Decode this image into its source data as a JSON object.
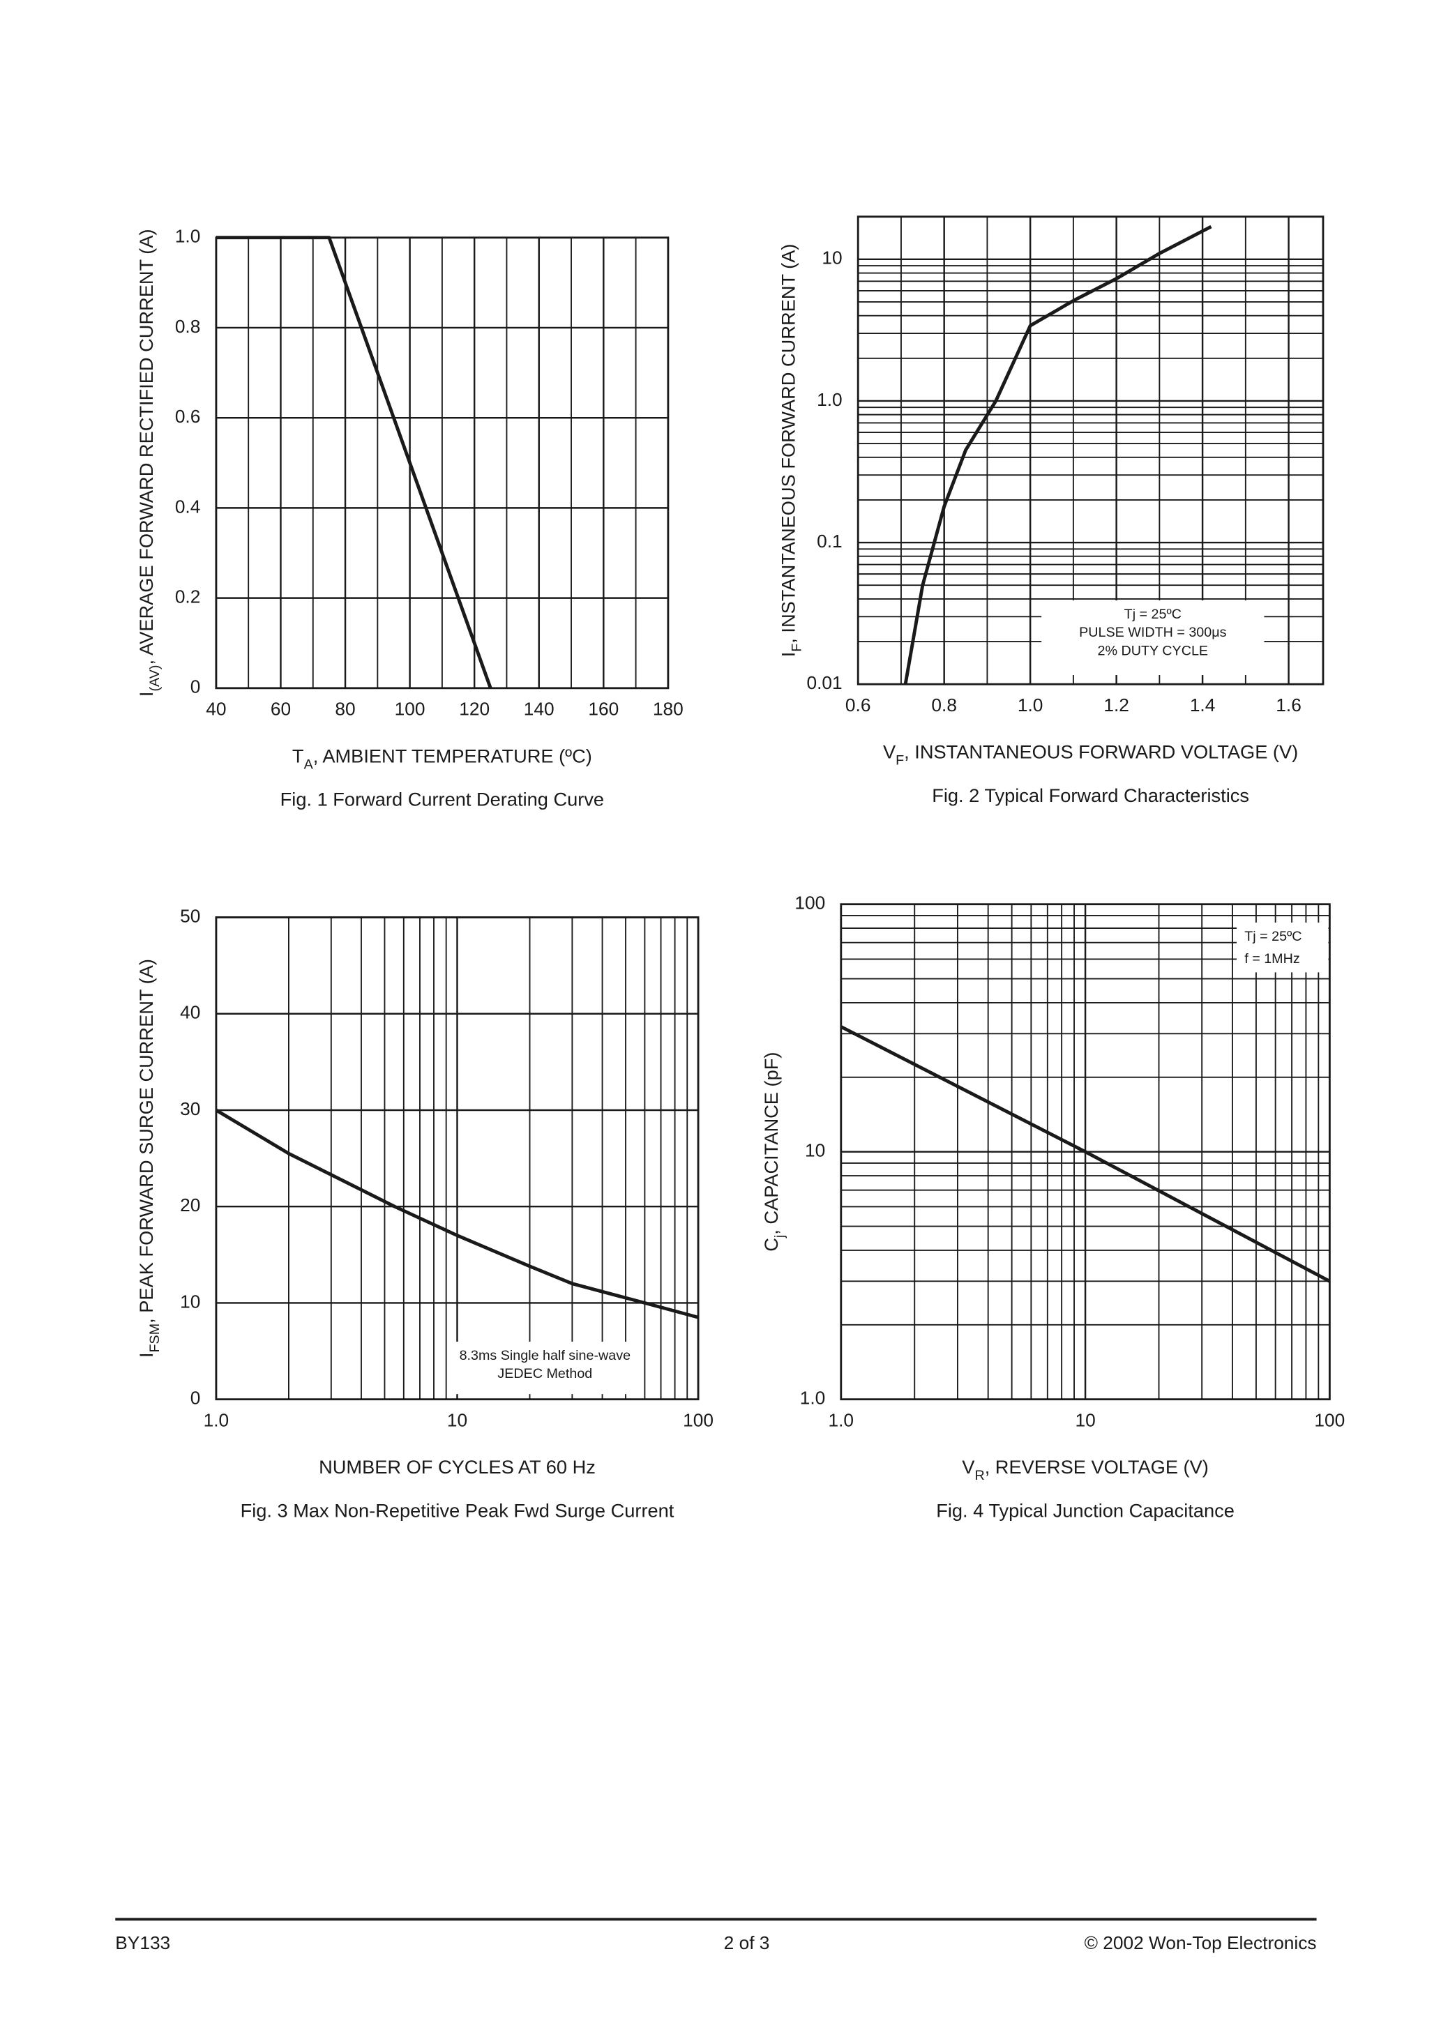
{
  "chart_data": [
    {
      "type": "line",
      "title": "Fig. 1 Forward Current Derating Curve",
      "xlabel": [
        "T",
        "A",
        ", AMBIENT TEMPERATURE (ºC)"
      ],
      "ylabel": [
        "I",
        "(AV)",
        ", AVERAGE FORWARD RECTIFIED CURRENT (A)"
      ],
      "x": [
        40,
        75,
        125
      ],
      "values": [
        1,
        1,
        0
      ],
      "color": "#1a1a1a",
      "xlim": [
        40,
        180
      ],
      "xticks": [
        40,
        60,
        80,
        100,
        120,
        140,
        160,
        180
      ],
      "ylim": [
        0,
        1
      ],
      "yticks": [
        0,
        0.2,
        0.4,
        0.6,
        0.8,
        {
          "value": 1,
          "label": "1.0"
        }
      ],
      "grid": true,
      "minor_grid": "x"
    },
    {
      "type": "line",
      "title": "Fig. 2 Typical Forward Characteristics",
      "xlabel": [
        "V",
        "F",
        ", INSTANTANEOUS FORWARD VOLTAGE (V)"
      ],
      "ylabel": [
        "I",
        "F",
        ", INSTANTANEOUS FORWARD CURRENT (A)"
      ],
      "x": [
        0.71,
        0.75,
        0.8,
        0.85,
        0.92,
        1.0,
        1.1,
        1.2,
        1.3,
        1.42
      ],
      "values": [
        0.01,
        0.05,
        0.18,
        0.45,
        1.0,
        3.4,
        5.1,
        7.3,
        11,
        17
      ],
      "color": "#1a1a1a",
      "xlim": [
        0.6,
        1.68
      ],
      "xticks": [
        0.6,
        0.8,
        {
          "value": 1,
          "label": "1.0"
        },
        1.2,
        1.4,
        1.6
      ],
      "ylim": [
        0.01,
        20
      ],
      "yscale": "log",
      "yticks": [
        0.01,
        0.1,
        {
          "value": 1,
          "label": "1.0"
        },
        10
      ],
      "grid": true,
      "minor_grid": "xy",
      "annotations": [
        "Tj = 25ºC",
        "PULSE WIDTH = 300μs",
        "2% DUTY CYCLE"
      ]
    },
    {
      "type": "line",
      "title": "Fig. 3  Max Non-Repetitive Peak Fwd Surge Current",
      "xlabel": [
        "NUMBER OF CYCLES AT 60 Hz"
      ],
      "ylabel": [
        "I",
        "FSM",
        ", PEAK FORWARD SURGE CURRENT (A)"
      ],
      "x": [
        1,
        2,
        5.5,
        10,
        20,
        30,
        60,
        100
      ],
      "values": [
        30,
        25.5,
        20,
        17,
        13.8,
        12,
        10,
        8.5
      ],
      "color": "#1a1a1a",
      "xlim": [
        1,
        100
      ],
      "xscale": "log",
      "xticks": [
        {
          "value": 1,
          "label": "1.0"
        },
        10,
        100
      ],
      "ylim": [
        0,
        50
      ],
      "yticks": [
        0,
        10,
        20,
        30,
        40,
        50
      ],
      "grid": true,
      "minor_grid": "x",
      "annotations": [
        "8.3ms Single half sine-wave",
        "JEDEC Method"
      ]
    },
    {
      "type": "line",
      "title": "Fig. 4 Typical Junction Capacitance",
      "xlabel": [
        "V",
        "R",
        ", REVERSE VOLTAGE (V)"
      ],
      "ylabel": [
        "C",
        "j",
        ", CAPACITANCE (pF)"
      ],
      "x": [
        1,
        10,
        100
      ],
      "values": [
        32,
        10,
        3
      ],
      "color": "#1a1a1a",
      "xlim": [
        1,
        100
      ],
      "xscale": "log",
      "xticks": [
        {
          "value": 1,
          "label": "1.0"
        },
        10,
        100
      ],
      "ylim": [
        1,
        100
      ],
      "yscale": "log",
      "yticks": [
        {
          "value": 1,
          "label": "1.0"
        },
        10,
        100
      ],
      "grid": true,
      "minor_grid": "xy",
      "annotations": [
        "Tj = 25ºC",
        "f = 1MHz"
      ]
    }
  ],
  "footer": {
    "left": "BY133",
    "center": "2  of  3",
    "right": "© 2002 Won-Top Electronics"
  }
}
